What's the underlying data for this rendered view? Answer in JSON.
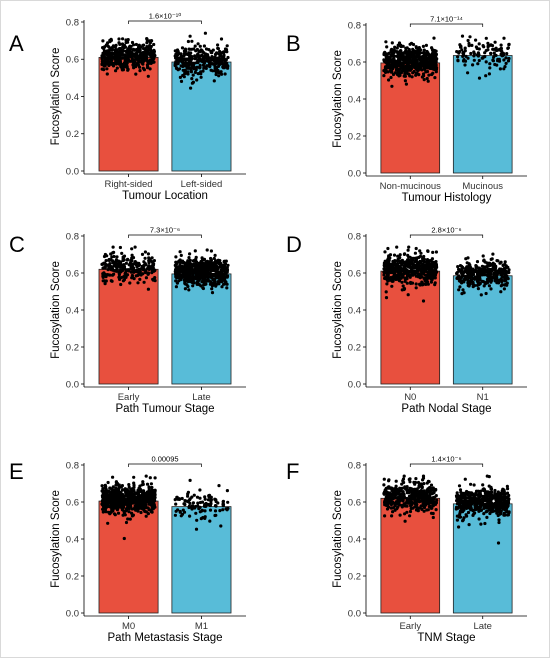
{
  "colors": {
    "left_bar": "#E8503E",
    "right_bar": "#58BCD8",
    "points": "#000000"
  },
  "chart_data": [
    {
      "type": "bar",
      "panel": "A",
      "categories": [
        "Right-sided",
        "Left-sided"
      ],
      "values": [
        0.61,
        0.585
      ],
      "xlabel": "Tumour Location",
      "ylabel": "Fucosylation Score",
      "ylim": [
        0,
        0.8
      ],
      "yticks": [
        "0.0",
        "0.2",
        "0.4",
        "0.6",
        "0.8"
      ],
      "pvalue": "1.6×10⁻¹⁰",
      "points_overlay": true,
      "grid": false
    },
    {
      "type": "bar",
      "panel": "B",
      "categories": [
        "Non-mucinous",
        "Mucinous"
      ],
      "values": [
        0.595,
        0.635
      ],
      "xlabel": "Tumour Histology",
      "ylabel": "Fucosylation Score",
      "ylim": [
        0,
        0.8
      ],
      "yticks": [
        "0.0",
        "0.2",
        "0.4",
        "0.6",
        "0.8"
      ],
      "pvalue": "7.1×10⁻¹⁴",
      "points_overlay": true,
      "grid": false
    },
    {
      "type": "bar",
      "panel": "C",
      "categories": [
        "Early",
        "Late"
      ],
      "values": [
        0.62,
        0.595
      ],
      "xlabel": "Path Tumour Stage",
      "ylabel": "Fucosylation Score",
      "ylim": [
        0,
        0.8
      ],
      "yticks": [
        "0.0",
        "0.2",
        "0.4",
        "0.6",
        "0.8"
      ],
      "pvalue": "7.3×10⁻⁶",
      "points_overlay": true,
      "grid": false
    },
    {
      "type": "bar",
      "panel": "D",
      "categories": [
        "N0",
        "N1"
      ],
      "values": [
        0.61,
        0.585
      ],
      "xlabel": "Path Nodal Stage",
      "ylabel": "Fucosylation Score",
      "ylim": [
        0,
        0.8
      ],
      "yticks": [
        "0.0",
        "0.2",
        "0.4",
        "0.6",
        "0.8"
      ],
      "pvalue": "2.8×10⁻⁶",
      "points_overlay": true,
      "grid": false
    },
    {
      "type": "bar",
      "panel": "E",
      "categories": [
        "M0",
        "M1"
      ],
      "values": [
        0.605,
        0.575
      ],
      "xlabel": "Path Metastasis Stage",
      "ylabel": "Fucosylation Score",
      "ylim": [
        0,
        0.8
      ],
      "yticks": [
        "0.0",
        "0.2",
        "0.4",
        "0.6",
        "0.8"
      ],
      "pvalue": "0.00095",
      "points_overlay": true,
      "grid": false
    },
    {
      "type": "bar",
      "panel": "F",
      "categories": [
        "Early",
        "Late"
      ],
      "values": [
        0.62,
        0.59
      ],
      "xlabel": "TNM Stage",
      "ylabel": "Fucosylation Score",
      "ylim": [
        0,
        0.8
      ],
      "yticks": [
        "0.0",
        "0.2",
        "0.4",
        "0.6",
        "0.8"
      ],
      "pvalue": "1.4×10⁻⁶",
      "points_overlay": true,
      "grid": false
    }
  ]
}
